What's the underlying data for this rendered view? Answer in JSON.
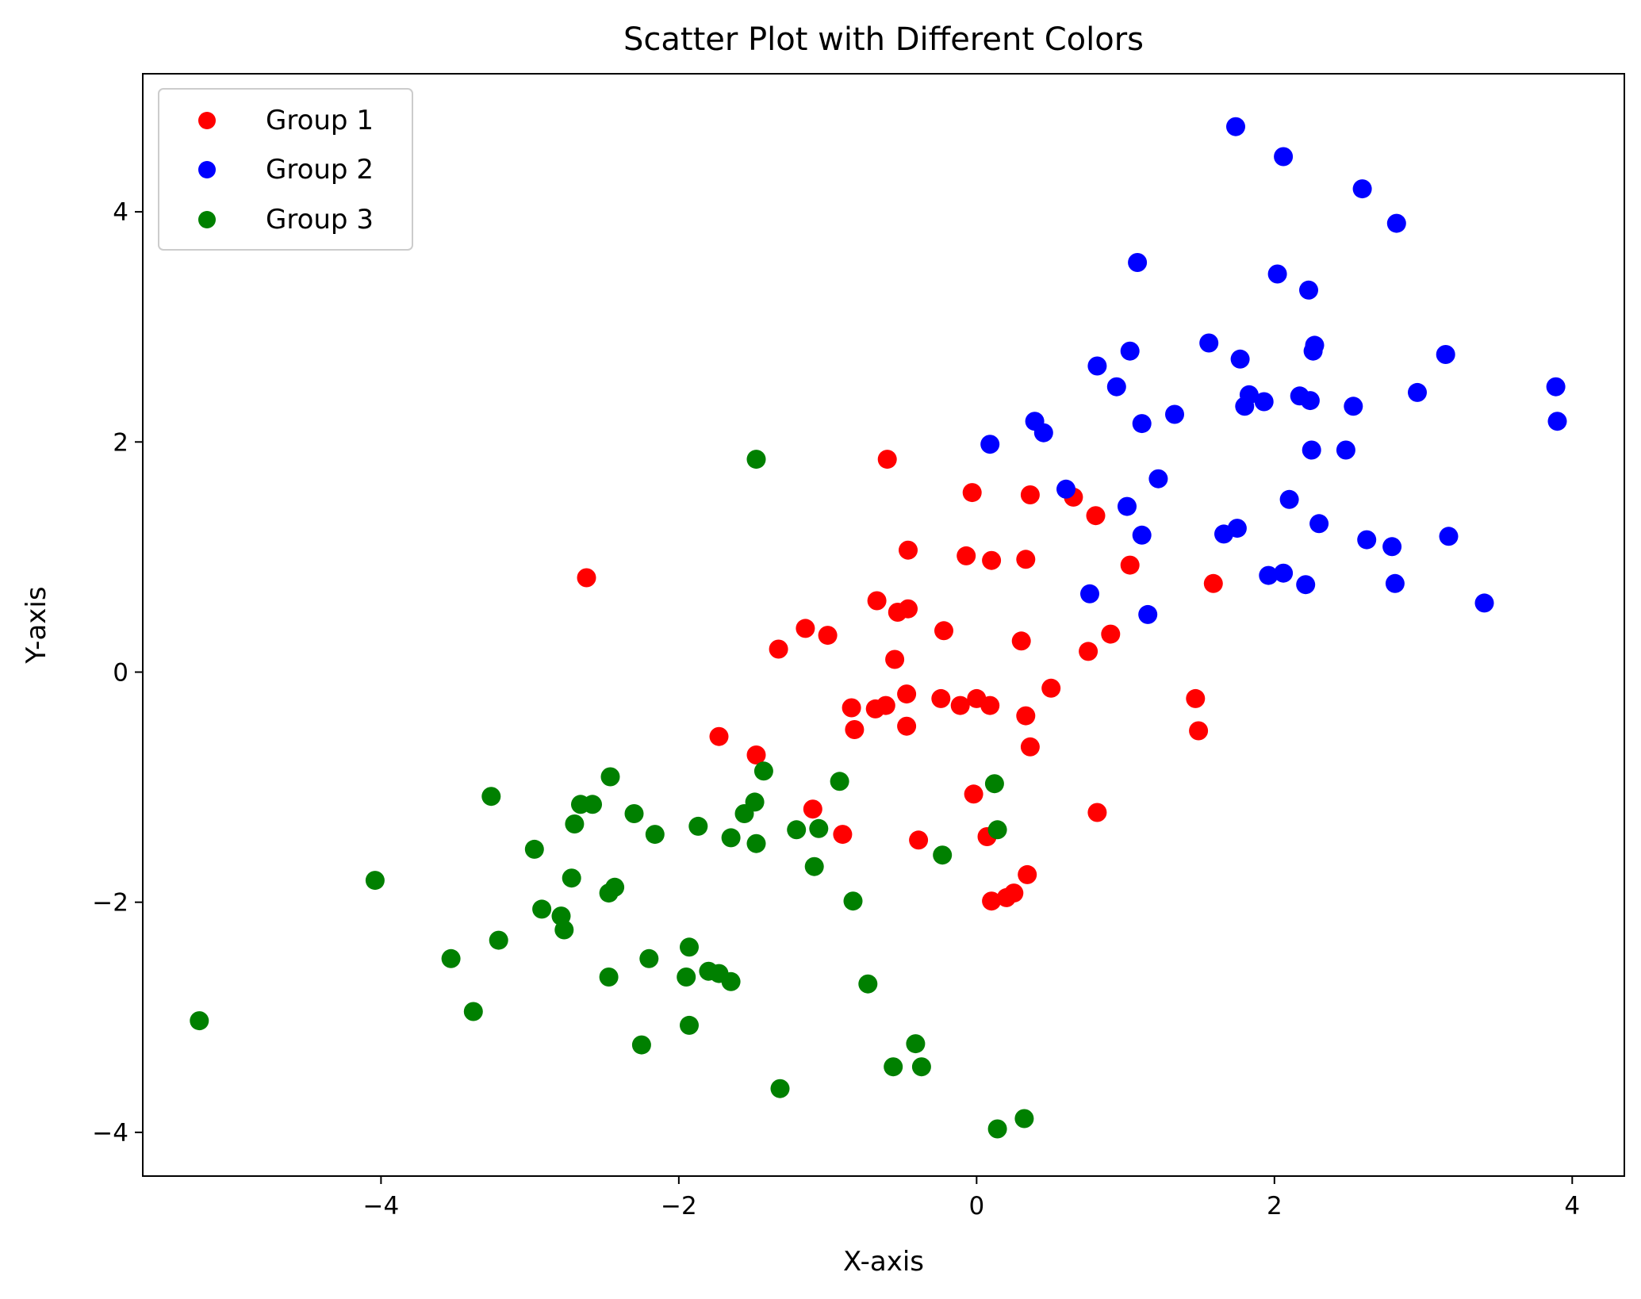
{
  "chart_data": {
    "type": "scatter",
    "title": "Scatter Plot with Different Colors",
    "xlabel": "X-axis",
    "ylabel": "Y-axis",
    "xlim": [
      -5.6,
      4.35
    ],
    "ylim": [
      -4.38,
      5.2
    ],
    "xticks": [
      -4,
      -2,
      0,
      2,
      4
    ],
    "yticks": [
      -4,
      -2,
      0,
      2,
      4
    ],
    "xtick_labels": [
      "−4",
      "−2",
      "0",
      "2",
      "4"
    ],
    "ytick_labels": [
      "−4",
      "−2",
      "0",
      "2",
      "4"
    ],
    "grid": false,
    "legend": "top-left",
    "series": [
      {
        "name": "Group 1",
        "color": "#ff0000",
        "points": [
          [
            -2.62,
            0.82
          ],
          [
            -0.6,
            1.85
          ],
          [
            -0.03,
            1.56
          ],
          [
            0.36,
            1.54
          ],
          [
            0.65,
            1.52
          ],
          [
            0.8,
            1.36
          ],
          [
            -0.46,
            1.06
          ],
          [
            -0.07,
            1.01
          ],
          [
            0.1,
            0.97
          ],
          [
            0.33,
            0.98
          ],
          [
            1.03,
            0.93
          ],
          [
            1.59,
            0.77
          ],
          [
            -0.67,
            0.62
          ],
          [
            -0.46,
            0.55
          ],
          [
            -0.53,
            0.52
          ],
          [
            -1.15,
            0.38
          ],
          [
            -1.0,
            0.32
          ],
          [
            -0.22,
            0.36
          ],
          [
            0.3,
            0.27
          ],
          [
            -1.33,
            0.2
          ],
          [
            0.9,
            0.33
          ],
          [
            0.75,
            0.18
          ],
          [
            -0.55,
            0.11
          ],
          [
            -0.47,
            -0.19
          ],
          [
            -0.61,
            -0.29
          ],
          [
            -0.68,
            -0.32
          ],
          [
            -0.84,
            -0.31
          ],
          [
            -0.24,
            -0.23
          ],
          [
            -0.11,
            -0.29
          ],
          [
            0.0,
            -0.23
          ],
          [
            0.09,
            -0.29
          ],
          [
            0.5,
            -0.14
          ],
          [
            1.47,
            -0.23
          ],
          [
            -0.82,
            -0.5
          ],
          [
            -0.47,
            -0.47
          ],
          [
            0.33,
            -0.38
          ],
          [
            1.49,
            -0.51
          ],
          [
            -1.73,
            -0.56
          ],
          [
            -1.48,
            -0.72
          ],
          [
            0.36,
            -0.65
          ],
          [
            -0.02,
            -1.06
          ],
          [
            -1.1,
            -1.19
          ],
          [
            0.81,
            -1.22
          ],
          [
            -0.9,
            -1.41
          ],
          [
            -0.39,
            -1.46
          ],
          [
            0.07,
            -1.43
          ],
          [
            0.34,
            -1.76
          ],
          [
            0.25,
            -1.92
          ],
          [
            0.2,
            -1.96
          ],
          [
            0.1,
            -1.99
          ]
        ]
      },
      {
        "name": "Group 2",
        "color": "#0000ff",
        "points": [
          [
            1.74,
            4.74
          ],
          [
            2.06,
            4.48
          ],
          [
            2.59,
            4.2
          ],
          [
            2.82,
            3.9
          ],
          [
            1.08,
            3.56
          ],
          [
            2.02,
            3.46
          ],
          [
            2.23,
            3.32
          ],
          [
            1.56,
            2.86
          ],
          [
            1.03,
            2.79
          ],
          [
            1.77,
            2.72
          ],
          [
            2.27,
            2.84
          ],
          [
            2.26,
            2.79
          ],
          [
            3.15,
            2.76
          ],
          [
            0.81,
            2.66
          ],
          [
            0.94,
            2.48
          ],
          [
            3.89,
            2.48
          ],
          [
            1.83,
            2.41
          ],
          [
            1.93,
            2.35
          ],
          [
            2.17,
            2.4
          ],
          [
            2.24,
            2.36
          ],
          [
            1.8,
            2.31
          ],
          [
            2.53,
            2.31
          ],
          [
            2.96,
            2.43
          ],
          [
            1.33,
            2.24
          ],
          [
            0.39,
            2.18
          ],
          [
            0.45,
            2.08
          ],
          [
            1.11,
            2.16
          ],
          [
            3.9,
            2.18
          ],
          [
            0.09,
            1.98
          ],
          [
            2.25,
            1.93
          ],
          [
            2.48,
            1.93
          ],
          [
            1.22,
            1.68
          ],
          [
            0.6,
            1.59
          ],
          [
            2.1,
            1.5
          ],
          [
            1.01,
            1.44
          ],
          [
            1.11,
            1.19
          ],
          [
            1.66,
            1.2
          ],
          [
            1.75,
            1.25
          ],
          [
            2.3,
            1.29
          ],
          [
            2.62,
            1.15
          ],
          [
            2.79,
            1.09
          ],
          [
            3.17,
            1.18
          ],
          [
            1.96,
            0.84
          ],
          [
            2.06,
            0.86
          ],
          [
            2.21,
            0.76
          ],
          [
            2.81,
            0.77
          ],
          [
            0.76,
            0.68
          ],
          [
            1.15,
            0.5
          ],
          [
            3.41,
            0.6
          ]
        ]
      },
      {
        "name": "Group 3",
        "color": "#008000",
        "points": [
          [
            -1.48,
            1.85
          ],
          [
            -2.46,
            -0.91
          ],
          [
            -1.43,
            -0.86
          ],
          [
            -3.26,
            -1.08
          ],
          [
            -2.66,
            -1.15
          ],
          [
            -2.58,
            -1.15
          ],
          [
            -2.3,
            -1.23
          ],
          [
            -1.56,
            -1.23
          ],
          [
            -1.49,
            -1.13
          ],
          [
            -0.92,
            -0.95
          ],
          [
            0.12,
            -0.97
          ],
          [
            -2.7,
            -1.32
          ],
          [
            -1.87,
            -1.34
          ],
          [
            -1.21,
            -1.37
          ],
          [
            -1.06,
            -1.36
          ],
          [
            0.14,
            -1.37
          ],
          [
            -2.16,
            -1.41
          ],
          [
            -1.65,
            -1.44
          ],
          [
            -1.48,
            -1.49
          ],
          [
            -2.97,
            -1.54
          ],
          [
            -0.23,
            -1.59
          ],
          [
            -1.09,
            -1.69
          ],
          [
            -4.04,
            -1.81
          ],
          [
            -2.72,
            -1.79
          ],
          [
            -2.43,
            -1.87
          ],
          [
            -2.47,
            -1.92
          ],
          [
            -0.83,
            -1.99
          ],
          [
            -2.92,
            -2.06
          ],
          [
            -2.79,
            -2.12
          ],
          [
            -2.77,
            -2.24
          ],
          [
            -3.21,
            -2.33
          ],
          [
            -1.93,
            -2.39
          ],
          [
            -3.53,
            -2.49
          ],
          [
            -2.2,
            -2.49
          ],
          [
            -1.8,
            -2.6
          ],
          [
            -1.73,
            -2.62
          ],
          [
            -1.95,
            -2.65
          ],
          [
            -2.47,
            -2.65
          ],
          [
            -1.65,
            -2.69
          ],
          [
            -0.73,
            -2.71
          ],
          [
            -3.38,
            -2.95
          ],
          [
            -1.93,
            -3.07
          ],
          [
            -5.22,
            -3.03
          ],
          [
            -2.25,
            -3.24
          ],
          [
            -0.41,
            -3.23
          ],
          [
            -0.56,
            -3.43
          ],
          [
            -0.37,
            -3.43
          ],
          [
            -1.32,
            -3.62
          ],
          [
            0.32,
            -3.88
          ],
          [
            0.14,
            -3.97
          ]
        ]
      }
    ]
  }
}
